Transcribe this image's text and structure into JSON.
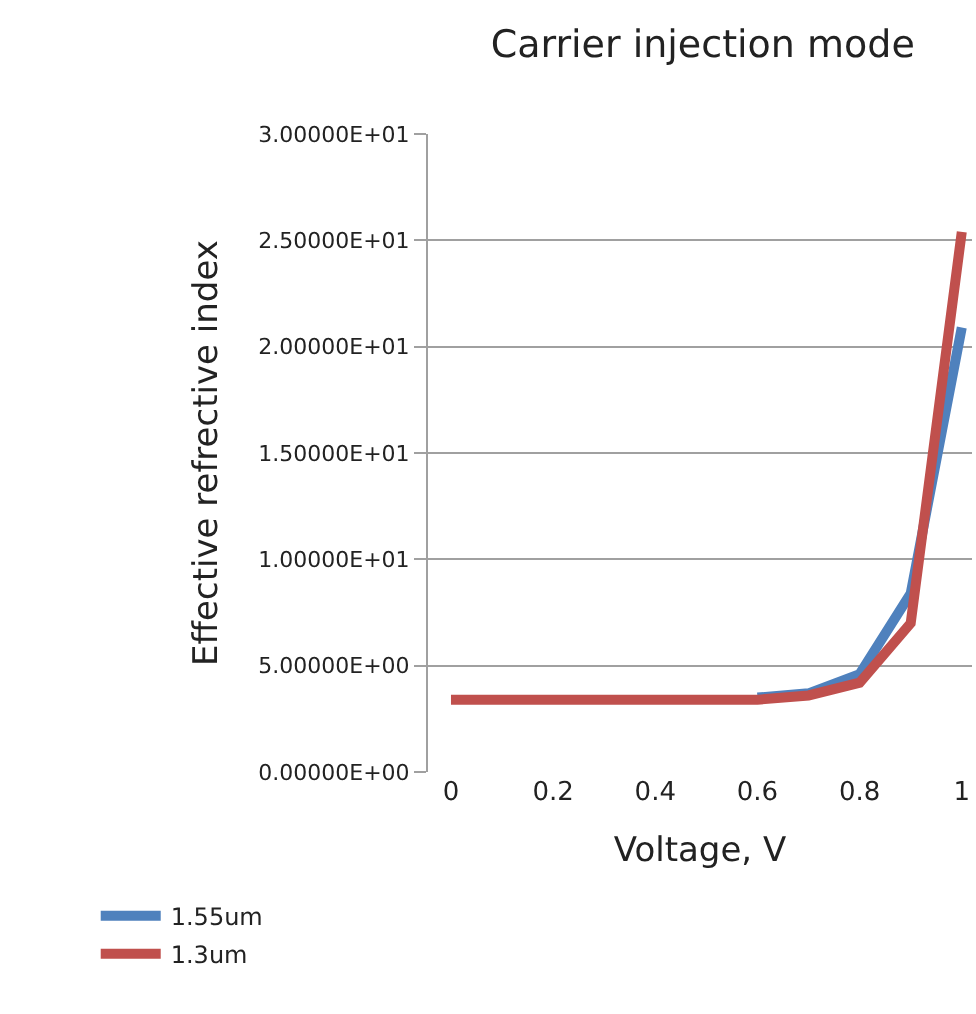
{
  "chart_data": {
    "type": "line",
    "title": "Carrier injection mode",
    "xlabel": "Voltage, V",
    "ylabel": "Effective refrective index",
    "x": [
      0,
      0.1,
      0.2,
      0.3,
      0.4,
      0.5,
      0.6,
      0.7,
      0.8,
      0.9,
      1
    ],
    "series": [
      {
        "name": "1.55um",
        "color": "#4f81bd",
        "values": [
          null,
          null,
          null,
          null,
          null,
          null,
          3.5,
          3.7,
          4.6,
          8.4,
          20.9
        ]
      },
      {
        "name": "1.3um",
        "color": "#c0504d",
        "values": [
          3.4,
          3.4,
          3.4,
          3.4,
          3.4,
          3.4,
          3.4,
          3.6,
          4.2,
          7.0,
          25.4
        ]
      }
    ],
    "xlim": [
      -0.045,
      1.02
    ],
    "xticks": [
      0,
      0.2,
      0.4,
      0.6,
      0.8,
      1
    ],
    "ylim": [
      0,
      30
    ],
    "yticks": [
      {
        "value": 0,
        "label": "0.00000E+00"
      },
      {
        "value": 5,
        "label": "5.00000E+00"
      },
      {
        "value": 10,
        "label": "1.00000E+01"
      },
      {
        "value": 15,
        "label": "1.50000E+01"
      },
      {
        "value": 20,
        "label": "2.00000E+01"
      },
      {
        "value": 25,
        "label": "2.50000E+01"
      },
      {
        "value": 30,
        "label": "3.00000E+01"
      }
    ],
    "grid": "y",
    "legend": "bottom left",
    "marker": "none",
    "line_style": "solid"
  }
}
